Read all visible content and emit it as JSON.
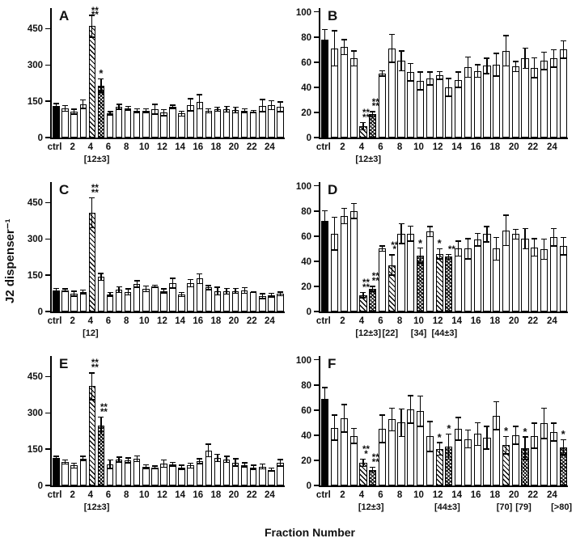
{
  "figure": {
    "y_axis_label": "J2 dispenser⁻¹",
    "x_axis_label": "Fraction Number",
    "colors": {
      "bar_open": "#ffffff",
      "bar_line": "#000000",
      "ctrl_fill": "#000000",
      "text": "#111111"
    }
  },
  "chart_data": {
    "type": "bar",
    "layout": {
      "grid": "off",
      "rows": 3,
      "cols": 2,
      "x_categories": "ctrl then fractions 1-25, tick labels on even fractions"
    },
    "fill_styles": {
      "k": "solid black (ctrl)",
      "o": "open white",
      "h": "diagonal hatch",
      "H": "dense cross hatch"
    },
    "bar_format": [
      "value",
      "error",
      "fill",
      "significance"
    ],
    "xticks": [
      {
        "at": 0,
        "label": "ctrl"
      },
      {
        "at": 2,
        "label": "2"
      },
      {
        "at": 4,
        "label": "4"
      },
      {
        "at": 6,
        "label": "6"
      },
      {
        "at": 8,
        "label": "8"
      },
      {
        "at": 10,
        "label": "10"
      },
      {
        "at": 12,
        "label": "12"
      },
      {
        "at": 14,
        "label": "14"
      },
      {
        "at": 16,
        "label": "16"
      },
      {
        "at": 18,
        "label": "18"
      },
      {
        "at": 20,
        "label": "20"
      },
      {
        "at": 22,
        "label": "22"
      },
      {
        "at": 24,
        "label": "24"
      }
    ],
    "panels": [
      {
        "label": "A",
        "ylim": [
          0,
          535
        ],
        "yticks": [
          0,
          150,
          300,
          450
        ],
        "annotations": [
          {
            "at": 4.7,
            "label": "[12±3]"
          }
        ],
        "bars": [
          [
            130,
            10,
            "k"
          ],
          [
            120,
            12,
            "o"
          ],
          [
            107,
            10,
            "o"
          ],
          [
            138,
            18,
            "o"
          ],
          [
            460,
            45,
            "h",
            "****"
          ],
          [
            215,
            28,
            "H",
            "*"
          ],
          [
            100,
            7,
            "o"
          ],
          [
            127,
            10,
            "o"
          ],
          [
            121,
            8,
            "o"
          ],
          [
            111,
            8,
            "o"
          ],
          [
            111,
            8,
            "o"
          ],
          [
            117,
            20,
            "o"
          ],
          [
            103,
            13,
            "o"
          ],
          [
            127,
            7,
            "o"
          ],
          [
            99,
            10,
            "o"
          ],
          [
            135,
            25,
            "o"
          ],
          [
            148,
            30,
            "o"
          ],
          [
            110,
            8,
            "o"
          ],
          [
            117,
            8,
            "o"
          ],
          [
            117,
            12,
            "o"
          ],
          [
            114,
            12,
            "o"
          ],
          [
            111,
            8,
            "o"
          ],
          [
            107,
            5,
            "o"
          ],
          [
            132,
            25,
            "o"
          ],
          [
            134,
            18,
            "o"
          ],
          [
            127,
            20,
            "o"
          ]
        ]
      },
      {
        "label": "B",
        "ylim": [
          0,
          100
        ],
        "yticks": [
          0,
          20,
          40,
          60,
          80,
          100
        ],
        "annotations": [
          {
            "at": 4.7,
            "label": "[12±3]"
          }
        ],
        "bars": [
          [
            78,
            8,
            "k"
          ],
          [
            71,
            14,
            "o"
          ],
          [
            72,
            6,
            "o"
          ],
          [
            63,
            6,
            "o"
          ],
          [
            9,
            3,
            "h",
            "****"
          ],
          [
            18.5,
            2,
            "H",
            "****"
          ],
          [
            51,
            2,
            "o"
          ],
          [
            71,
            11,
            "o"
          ],
          [
            61,
            8,
            "o"
          ],
          [
            52,
            7,
            "o"
          ],
          [
            45,
            7,
            "o"
          ],
          [
            47,
            5,
            "o"
          ],
          [
            49.5,
            3,
            "o"
          ],
          [
            40,
            7,
            "o"
          ],
          [
            46,
            6,
            "o"
          ],
          [
            56,
            8,
            "o"
          ],
          [
            53,
            5,
            "o"
          ],
          [
            57,
            6,
            "o"
          ],
          [
            58,
            9,
            "o"
          ],
          [
            69,
            12,
            "o"
          ],
          [
            56.5,
            4,
            "o"
          ],
          [
            63,
            8,
            "o"
          ],
          [
            55.5,
            8,
            "o"
          ],
          [
            61,
            7,
            "o"
          ],
          [
            63,
            7,
            "o"
          ],
          [
            70,
            7,
            "o"
          ]
        ]
      },
      {
        "label": "C",
        "ylim": [
          0,
          535
        ],
        "yticks": [
          0,
          150,
          300,
          450
        ],
        "annotations": [
          {
            "at": 4,
            "label": "[12]"
          }
        ],
        "bars": [
          [
            88,
            8,
            "k"
          ],
          [
            88,
            6,
            "o"
          ],
          [
            74,
            10,
            "o"
          ],
          [
            81,
            7,
            "o"
          ],
          [
            408,
            62,
            "h",
            "****"
          ],
          [
            143,
            15,
            "o"
          ],
          [
            71,
            8,
            "o"
          ],
          [
            90,
            12,
            "o"
          ],
          [
            81,
            12,
            "o"
          ],
          [
            114,
            13,
            "o"
          ],
          [
            94,
            12,
            "o"
          ],
          [
            104,
            5,
            "o"
          ],
          [
            85,
            8,
            "o"
          ],
          [
            117,
            20,
            "o"
          ],
          [
            70,
            8,
            "o"
          ],
          [
            117,
            15,
            "o"
          ],
          [
            136,
            20,
            "o"
          ],
          [
            99,
            8,
            "o"
          ],
          [
            84,
            16,
            "o"
          ],
          [
            84,
            12,
            "o"
          ],
          [
            85,
            10,
            "o"
          ],
          [
            87,
            12,
            "o"
          ],
          [
            80,
            2,
            "o"
          ],
          [
            64,
            10,
            "o"
          ],
          [
            68,
            8,
            "o"
          ],
          [
            73,
            8,
            "o"
          ]
        ]
      },
      {
        "label": "D",
        "ylim": [
          0,
          100
        ],
        "yticks": [
          0,
          20,
          40,
          60,
          80,
          100
        ],
        "annotations": [
          {
            "at": 4.7,
            "label": "[12±3]"
          },
          {
            "at": 7,
            "label": "[22]"
          },
          {
            "at": 10,
            "label": "[34]"
          },
          {
            "at": 12.7,
            "label": "[44±3]"
          }
        ],
        "bars": [
          [
            72,
            8,
            "k"
          ],
          [
            62,
            13,
            "o"
          ],
          [
            76,
            6,
            "o"
          ],
          [
            80,
            6,
            "o"
          ],
          [
            13,
            2,
            "h",
            "****"
          ],
          [
            18,
            2,
            "H",
            "****"
          ],
          [
            50,
            2,
            "o"
          ],
          [
            37,
            8,
            "h",
            "***"
          ],
          [
            62,
            8,
            "o"
          ],
          [
            62,
            6,
            "o"
          ],
          [
            44.5,
            6,
            "H",
            "*"
          ],
          [
            63.5,
            4,
            "o"
          ],
          [
            46,
            4,
            "h",
            "*"
          ],
          [
            43.5,
            2,
            "H",
            "**"
          ],
          [
            50,
            6,
            "o"
          ],
          [
            50,
            8,
            "o"
          ],
          [
            57,
            5,
            "o"
          ],
          [
            61.5,
            6,
            "o"
          ],
          [
            50,
            9,
            "o"
          ],
          [
            64.5,
            12,
            "o"
          ],
          [
            61.5,
            4,
            "o"
          ],
          [
            58,
            8,
            "o"
          ],
          [
            51,
            7,
            "o"
          ],
          [
            49.5,
            8,
            "o"
          ],
          [
            59,
            7,
            "o"
          ],
          [
            52,
            7,
            "o"
          ]
        ]
      },
      {
        "label": "E",
        "ylim": [
          0,
          535
        ],
        "yticks": [
          0,
          150,
          300,
          450
        ],
        "annotations": [
          {
            "at": 4.7,
            "label": "[12±3]"
          }
        ],
        "bars": [
          [
            113,
            8,
            "k"
          ],
          [
            97,
            8,
            "o"
          ],
          [
            82,
            10,
            "o"
          ],
          [
            112,
            8,
            "o"
          ],
          [
            410,
            55,
            "h",
            "****"
          ],
          [
            248,
            35,
            "H",
            "****"
          ],
          [
            88,
            17,
            "o"
          ],
          [
            107,
            10,
            "o"
          ],
          [
            103,
            10,
            "o"
          ],
          [
            110,
            12,
            "o"
          ],
          [
            78,
            8,
            "o"
          ],
          [
            75,
            6,
            "o"
          ],
          [
            91,
            15,
            "o"
          ],
          [
            88,
            8,
            "o"
          ],
          [
            75,
            8,
            "o"
          ],
          [
            82,
            10,
            "o"
          ],
          [
            100,
            10,
            "o"
          ],
          [
            144,
            26,
            "o"
          ],
          [
            113,
            15,
            "o"
          ],
          [
            108,
            12,
            "o"
          ],
          [
            95,
            15,
            "o"
          ],
          [
            85,
            8,
            "o"
          ],
          [
            75,
            8,
            "o"
          ],
          [
            78,
            10,
            "o"
          ],
          [
            65,
            7,
            "o"
          ],
          [
            94,
            13,
            "o"
          ]
        ]
      },
      {
        "label": "F",
        "ylim": [
          0,
          100
        ],
        "yticks": [
          0,
          20,
          40,
          60,
          80,
          100
        ],
        "annotations": [
          {
            "at": 5,
            "label": "[12±3]"
          },
          {
            "at": 13,
            "label": "[44±3]"
          },
          {
            "at": 19,
            "label": "[70]"
          },
          {
            "at": 21,
            "label": "[79]"
          },
          {
            "at": 25,
            "label": "[>80]"
          }
        ],
        "bars": [
          [
            69,
            9,
            "k"
          ],
          [
            46,
            10,
            "o"
          ],
          [
            53.5,
            11,
            "o"
          ],
          [
            39.5,
            6,
            "o"
          ],
          [
            18,
            3,
            "h",
            "***"
          ],
          [
            12.5,
            2,
            "H",
            "****"
          ],
          [
            45,
            11,
            "o"
          ],
          [
            52.5,
            9,
            "o"
          ],
          [
            50,
            11,
            "o"
          ],
          [
            60.5,
            11,
            "o"
          ],
          [
            59,
            12,
            "o"
          ],
          [
            39,
            12,
            "o"
          ],
          [
            29,
            5,
            "h",
            "*"
          ],
          [
            31,
            10,
            "H",
            "*"
          ],
          [
            45,
            9,
            "o"
          ],
          [
            37,
            7,
            "o"
          ],
          [
            41,
            9,
            "o"
          ],
          [
            38,
            9,
            "o"
          ],
          [
            55.5,
            11,
            "o"
          ],
          [
            32,
            7,
            "h",
            "*"
          ],
          [
            40,
            7,
            "o"
          ],
          [
            29.5,
            9,
            "H",
            "*"
          ],
          [
            39.5,
            10,
            "o"
          ],
          [
            49.5,
            12,
            "o"
          ],
          [
            42.5,
            7,
            "o"
          ],
          [
            30.5,
            6,
            "H",
            "*"
          ]
        ]
      }
    ]
  }
}
